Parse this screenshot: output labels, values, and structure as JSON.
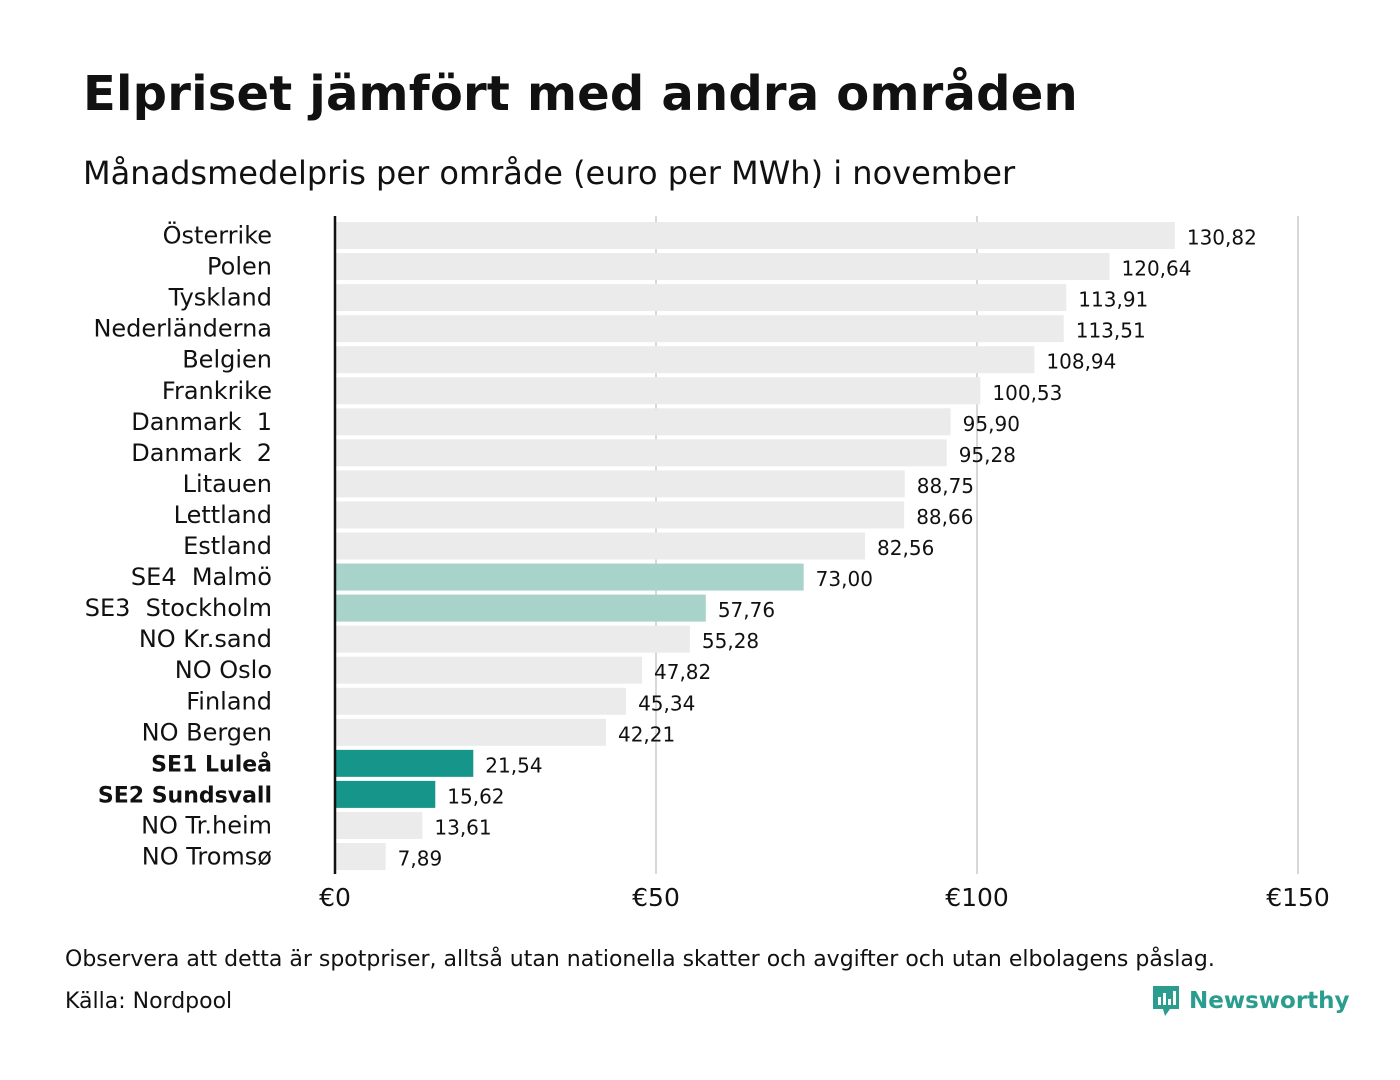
{
  "title": "Elpriset jämfört med andra områden",
  "subtitle": "Månadsmedelpris per område (euro per MWh) i november",
  "note": "Observera att detta är spotpriser, alltså utan nationella skatter och avgifter och utan elbolagens påslag.",
  "source": "Källa: Nordpool",
  "brand": {
    "name": "Newsworthy",
    "logo_icon": "newsworthy-logo-icon",
    "color": "#2a9d8f"
  },
  "colors": {
    "default_bar": "#ebebeb",
    "light_highlight": "#a8d3ca",
    "strong_highlight": "#16968a",
    "gridline": "#cccccc",
    "axis": "#111111",
    "text": "#111111"
  },
  "chart_data": {
    "type": "bar",
    "orientation": "horizontal",
    "categories": [
      "Österrike",
      "Polen",
      "Tyskland",
      "Nederländerna",
      "Belgien",
      "Frankrike",
      "Danmark  1",
      "Danmark  2",
      "Litauen",
      "Lettland",
      "Estland",
      "SE4  Malmö",
      "SE3  Stockholm",
      "NO Kr.sand",
      "NO Oslo",
      "Finland",
      "NO Bergen",
      "SE1 Luleå",
      "SE2 Sundsvall",
      "NO Tr.heim",
      "NO Tromsø"
    ],
    "values": [
      130.82,
      120.64,
      113.91,
      113.51,
      108.94,
      100.53,
      95.9,
      95.28,
      88.75,
      88.66,
      82.56,
      73.0,
      57.76,
      55.28,
      47.82,
      45.34,
      42.21,
      21.54,
      15.62,
      13.61,
      7.89
    ],
    "value_labels": [
      "130,82",
      "120,64",
      "113,91",
      "113,51",
      "108,94",
      "100,53",
      "95,90",
      "95,28",
      "88,75",
      "88,66",
      "82,56",
      "73,00",
      "57,76",
      "55,28",
      "47,82",
      "45,34",
      "42,21",
      "21,54",
      "15,62",
      "13,61",
      "7,89"
    ],
    "highlight": [
      "none",
      "none",
      "none",
      "none",
      "none",
      "none",
      "none",
      "none",
      "none",
      "none",
      "none",
      "light",
      "light",
      "none",
      "none",
      "none",
      "none",
      "strong",
      "strong",
      "none",
      "none"
    ],
    "bold_labels": [
      "SE1 Luleå",
      "SE2 Sundsvall"
    ],
    "xlim": [
      0,
      150
    ],
    "xticks": [
      0,
      50,
      100,
      150
    ],
    "xtick_labels": [
      "€0",
      "€50",
      "€100",
      "€150"
    ],
    "grid": "vertical",
    "xlabel": "",
    "ylabel": ""
  }
}
